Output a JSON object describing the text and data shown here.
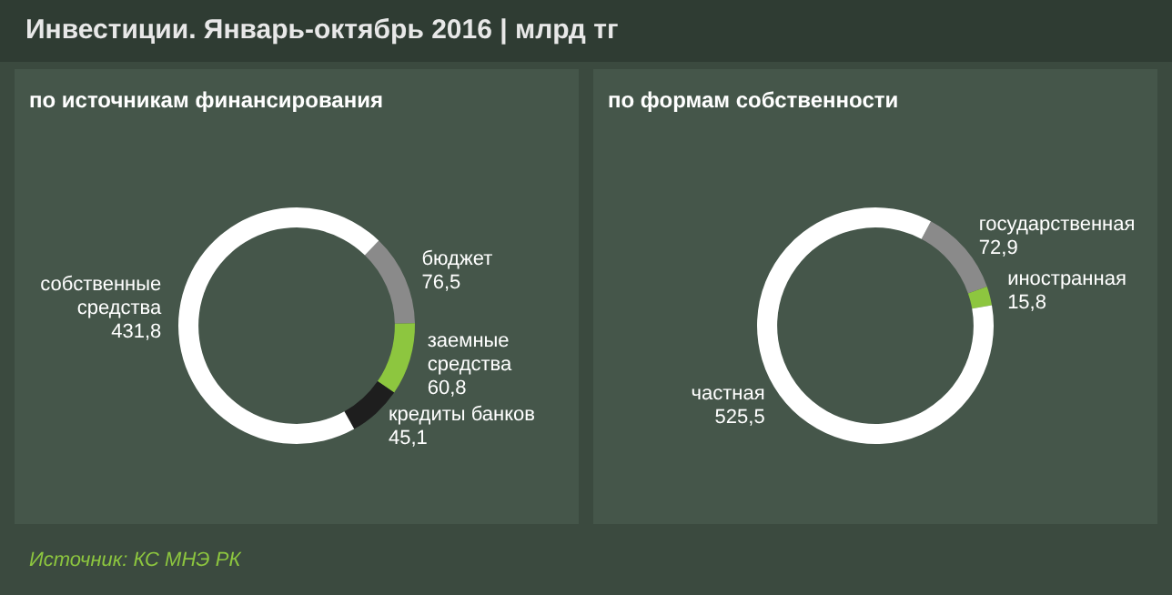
{
  "chart_data": [
    {
      "type": "donut",
      "title": "Инвестиции. Январь-октябрь  2016 | млрд тг",
      "subtitle": "по источникам финансирования",
      "categories": [
        "бюджет",
        "заемные средства",
        "кредиты банков",
        "собственные средства"
      ],
      "values": [
        76.5,
        60.8,
        45.1,
        431.8
      ],
      "value_labels": [
        "76,5",
        "60,8",
        "45,1",
        "431,8"
      ],
      "colors": [
        "#8a8a8a",
        "#8dc63f",
        "#1e1e1e",
        "#ffffff"
      ],
      "legend": false
    },
    {
      "type": "donut",
      "subtitle": "по формам собственности",
      "categories": [
        "государственная",
        "иностранная",
        "частная"
      ],
      "values": [
        72.9,
        15.8,
        525.5
      ],
      "value_labels": [
        "72,9",
        "15,8",
        "525,5"
      ],
      "colors": [
        "#8a8a8a",
        "#8dc63f",
        "#ffffff"
      ],
      "legend": false,
      "annotations": [
        "Источник: КС МНЭ РК"
      ]
    }
  ]
}
